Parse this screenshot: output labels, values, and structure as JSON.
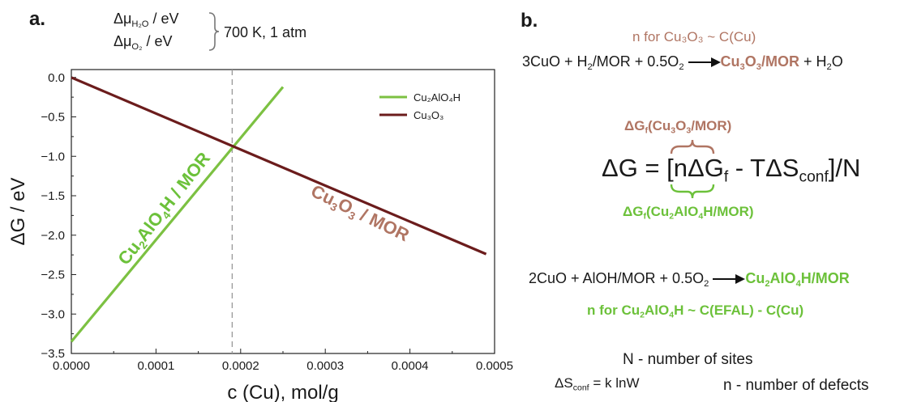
{
  "panel_a": {
    "label": "a.",
    "conditions": {
      "mu_h2o": "Δμ",
      "mu_h2o_sub": "H₂O",
      "mu_o2": "Δμ",
      "mu_o2_sub": "O₂",
      "unit": "/ eV",
      "value": "700 K, 1 atm"
    },
    "annotation_green": {
      "base": "Cu",
      "s1": "2",
      "mid": "AlO",
      "s2": "4",
      "tail": "H / MOR"
    },
    "annotation_brown": {
      "base": "Cu",
      "s1": "3",
      "mid": "O",
      "s2": "3",
      "tail": " / MOR"
    }
  },
  "chart_data": {
    "type": "line",
    "xlabel": "c (Cu), mol/g",
    "ylabel": "ΔG / eV",
    "xlim": [
      0,
      0.0005
    ],
    "ylim": [
      -3.5,
      0.1
    ],
    "x_ticks": [
      0,
      0.0001,
      0.0002,
      0.0003,
      0.0004,
      0.0005
    ],
    "x_tick_labels": [
      "0.0000",
      "0.0001",
      "0.0002",
      "0.0003",
      "0.0004",
      "0.0005"
    ],
    "y_ticks": [
      0.0,
      -0.5,
      -1.0,
      -1.5,
      -2.0,
      -2.5,
      -3.0,
      -3.5
    ],
    "y_tick_labels": [
      "0.0",
      "−0.5",
      "−1.0",
      "−1.5",
      "−2.0",
      "−2.5",
      "−3.0",
      "−3.5"
    ],
    "vline_x": 0.00019,
    "legend_position": "top-right",
    "series": [
      {
        "name": "Cu₂AlO₄H",
        "color": "#7cc142",
        "x": [
          0.0,
          0.00025
        ],
        "y": [
          -3.35,
          -0.12
        ]
      },
      {
        "name": "Cu₃O₃",
        "color": "#6b1c1c",
        "x": [
          0.0,
          0.00049
        ],
        "y": [
          0.0,
          -2.24
        ]
      }
    ]
  },
  "panel_b": {
    "label": "b.",
    "n_cu3o3": "n for Cu₃O₃ ~ C(Cu)",
    "reaction1": {
      "lhs": "3CuO + H",
      "lhs_s1": "2",
      "lhs_mid": "/MOR + 0.5O",
      "lhs_s2": "2",
      "product_base": "Cu",
      "product_s1": "3",
      "product_mid": "O",
      "product_s2": "3",
      "product_tail": "/MOR",
      "plus": " + H",
      "plus_sub": "2",
      "plus_tail": "O"
    },
    "dgf_top": {
      "base": "ΔG",
      "sub": "f",
      "open": "(Cu",
      "s1": "3",
      "mid": "O",
      "s2": "3",
      "close": "/MOR)"
    },
    "main_eq": {
      "a": "ΔG = [nΔG",
      "sub1": "f",
      "b": " - TΔS",
      "sub2": "conf",
      "c": "]/N"
    },
    "dgf_bottom": {
      "base": "ΔG",
      "sub": "f",
      "open": "(Cu",
      "s1": "2",
      "mid": "AlO",
      "s2": "4",
      "close": "H/MOR)"
    },
    "reaction2": {
      "lhs": "2CuO + AlOH/MOR + 0.5O",
      "lhs_s": "2",
      "product_base": "Cu",
      "product_s1": "2",
      "product_mid": "AlO",
      "product_s2": "4",
      "product_tail": "H/MOR"
    },
    "n_cu2alo4h": {
      "a": "n for Cu",
      "s1": "2",
      "b": "AlO",
      "s2": "4",
      "c": "H ~ C(EFAL) - C(Cu)"
    },
    "n_sites": "N - number of sites",
    "n_defects": "n - number of defects",
    "entropy": {
      "a": "ΔS",
      "sub": "conf",
      "b": " = k lnW"
    }
  }
}
